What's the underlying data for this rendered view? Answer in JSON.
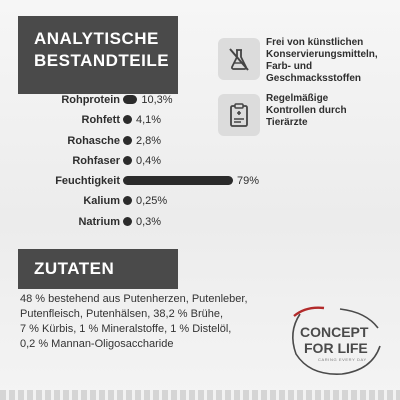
{
  "header": {
    "line1": "ANALYTISCHE",
    "line2": "BESTANDTEILE"
  },
  "nutrients": [
    {
      "name": "Rohprotein",
      "value": "10,3%",
      "percent": 10.3
    },
    {
      "name": "Rohfett",
      "value": "4,1%",
      "percent": 4.1
    },
    {
      "name": "Rohasche",
      "value": "2,8%",
      "percent": 2.8
    },
    {
      "name": "Rohfaser",
      "value": "0,4%",
      "percent": 0.4
    },
    {
      "name": "Feuchtigkeit",
      "value": "79%",
      "percent": 79
    },
    {
      "name": "Kalium",
      "value": "0,25%",
      "percent": 0.25
    },
    {
      "name": "Natrium",
      "value": "0,3%",
      "percent": 0.3
    }
  ],
  "features": [
    {
      "icon": "crossed-flask-icon",
      "text_lines": [
        "Frei von künstlichen",
        "Konservierungsmitteln,",
        "Farb- und",
        "Geschmacksstoffen"
      ]
    },
    {
      "icon": "vet-clipboard-icon",
      "text_lines": [
        "Regelmäßige",
        "Kontrollen durch",
        "Tierärzte"
      ]
    }
  ],
  "zutaten": {
    "title": "ZUTATEN",
    "lines": [
      "48 % bestehend aus Putenherzen, Putenleber,",
      "Putenfleisch, Putenhälsen, 38,2 % Brühe,",
      "7 % Kürbis, 1 % Mineralstoffe, 1 % Distelöl,",
      "0,2 % Mannan-Oligosaccharide"
    ]
  },
  "brand": {
    "line1": "CONCEPT",
    "line2": "FOR LIFE",
    "tagline": "CARING EVERY DAY"
  },
  "colors": {
    "dark_box": "#4a4a4a",
    "bar": "#2b2b2b",
    "brand_red": "#b22a2a"
  }
}
